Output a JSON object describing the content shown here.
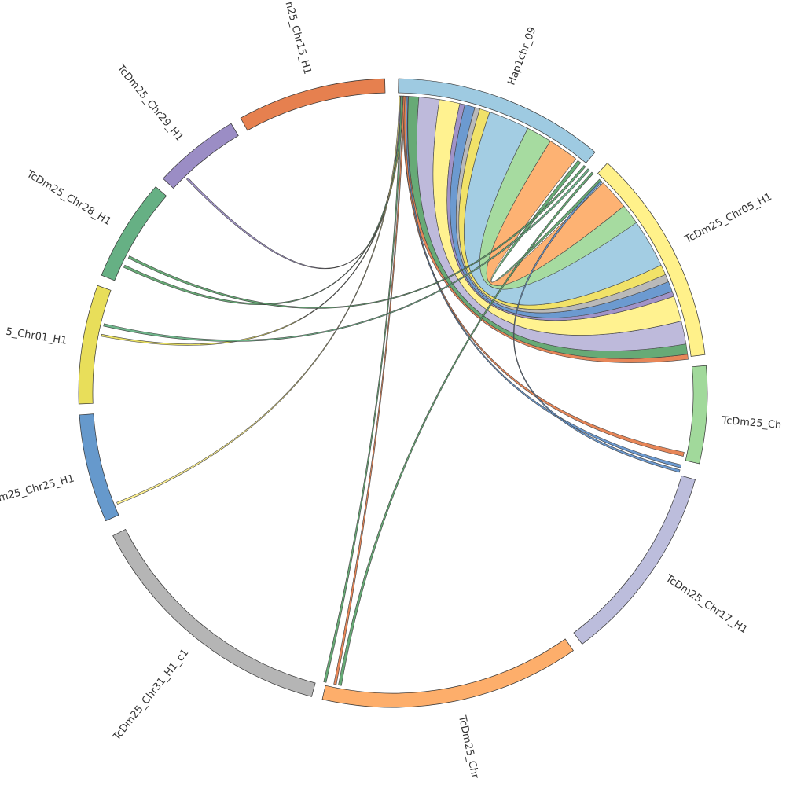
{
  "nodes": [
    {
      "label": "Hap1chr_09"
    },
    {
      "label": "TcDm25_Chr05_H1"
    },
    {
      "label": "TcDm25_Ch"
    },
    {
      "label": "TcDm25_Chr17_H1"
    },
    {
      "label": "TcDm25_Chr"
    },
    {
      "label": "TcDm25_Chr31_H1_c1"
    },
    {
      "label": "m25_Chr25_H1"
    },
    {
      "label": "5_Chr01_H1"
    },
    {
      "label": "TcDm25_Chr28_H1"
    },
    {
      "label": "TcDm25_Chr29_H1"
    },
    {
      "label": "n25_Chr15_H1"
    }
  ]
}
